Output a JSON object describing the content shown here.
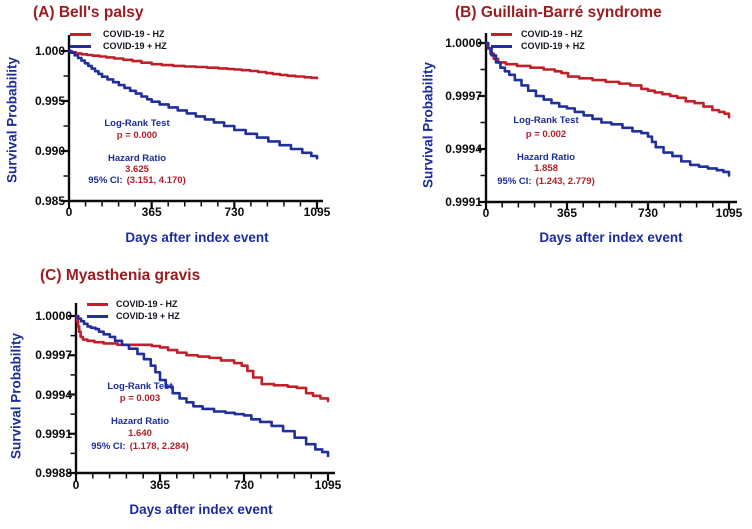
{
  "figure": {
    "background": "#ffffff",
    "colors": {
      "curve_red": "#C1202A",
      "curve_blue": "#212F9C",
      "title_red": "#9B1B1F",
      "navy": "#1B2C9B",
      "tick_text": "#0a0a0a",
      "stat_red": "#B01E27",
      "legend_text": "#15151f",
      "axis": "#0a0a0a"
    }
  },
  "chart_data": [
    {
      "id": "A",
      "type": "line",
      "subtype": "kaplan-meier-step",
      "title": "(A) Bell's palsy",
      "xlabel": "Days after index event",
      "ylabel": "Survival Probability",
      "xlim": [
        0,
        1095
      ],
      "ylim": [
        0.985,
        1.0
      ],
      "grid": false,
      "legend_position": "top-left-inside",
      "xticks": [
        {
          "label": "0",
          "day": 0
        },
        {
          "label": "365",
          "day": 365
        },
        {
          "label": "730",
          "day": 730
        },
        {
          "label": "1095",
          "day": 1095
        }
      ],
      "yticks": [
        {
          "label": "1.000",
          "value": 1.0
        },
        {
          "label": "0.995",
          "value": 0.995
        },
        {
          "label": "0.990",
          "value": 0.99
        },
        {
          "label": "0.985",
          "value": 0.985
        }
      ],
      "legend": [
        {
          "label": "COVID-19 - HZ",
          "color": "#C1202A"
        },
        {
          "label": "COVID-19 + HZ",
          "color": "#212F9C"
        }
      ],
      "stats": {
        "test_label": "Log-Rank Test",
        "p_text": "p = 0.000",
        "hr_label": "Hazard Ratio",
        "hr_value": "3.625",
        "ci_label": "95% CI:",
        "ci_value": "(3.151, 4.170)"
      },
      "series": [
        {
          "name": "COVID-19 - HZ",
          "color": "#C1202A",
          "points": [
            [
              0,
              1.0
            ],
            [
              12,
              0.99988
            ],
            [
              30,
              0.99976
            ],
            [
              55,
              0.99967
            ],
            [
              80,
              0.9996
            ],
            [
              105,
              0.99953
            ],
            [
              135,
              0.99945
            ],
            [
              165,
              0.99936
            ],
            [
              200,
              0.99925
            ],
            [
              240,
              0.99912
            ],
            [
              280,
              0.99899
            ],
            [
              320,
              0.99883
            ],
            [
              365,
              0.99868
            ],
            [
              410,
              0.99859
            ],
            [
              460,
              0.99851
            ],
            [
              510,
              0.99845
            ],
            [
              560,
              0.9984
            ],
            [
              610,
              0.99833
            ],
            [
              660,
              0.99826
            ],
            [
              700,
              0.9982
            ],
            [
              730,
              0.99815
            ],
            [
              762,
              0.99808
            ],
            [
              800,
              0.998
            ],
            [
              835,
              0.9979
            ],
            [
              870,
              0.99779
            ],
            [
              900,
              0.99769
            ],
            [
              932,
              0.9976
            ],
            [
              965,
              0.99752
            ],
            [
              1000,
              0.99745
            ],
            [
              1040,
              0.99737
            ],
            [
              1070,
              0.99732
            ],
            [
              1095,
              0.99729
            ]
          ]
        },
        {
          "name": "COVID-19 + HZ",
          "color": "#212F9C",
          "points": [
            [
              0,
              1.0
            ],
            [
              10,
              0.99983
            ],
            [
              25,
              0.99957
            ],
            [
              40,
              0.9993
            ],
            [
              55,
              0.99904
            ],
            [
              70,
              0.99877
            ],
            [
              85,
              0.99851
            ],
            [
              100,
              0.99824
            ],
            [
              115,
              0.99798
            ],
            [
              130,
              0.99771
            ],
            [
              146,
              0.99743
            ],
            [
              170,
              0.99716
            ],
            [
              195,
              0.99688
            ],
            [
              220,
              0.99659
            ],
            [
              245,
              0.99631
            ],
            [
              270,
              0.99602
            ],
            [
              295,
              0.99574
            ],
            [
              320,
              0.99545
            ],
            [
              345,
              0.99517
            ],
            [
              365,
              0.99493
            ],
            [
              400,
              0.99466
            ],
            [
              440,
              0.99436
            ],
            [
              480,
              0.99406
            ],
            [
              520,
              0.99376
            ],
            [
              560,
              0.99346
            ],
            [
              600,
              0.99316
            ],
            [
              640,
              0.99286
            ],
            [
              685,
              0.9925
            ],
            [
              730,
              0.9921
            ],
            [
              780,
              0.99172
            ],
            [
              830,
              0.99134
            ],
            [
              880,
              0.99096
            ],
            [
              930,
              0.99058
            ],
            [
              980,
              0.9902
            ],
            [
              1030,
              0.98982
            ],
            [
              1070,
              0.9895
            ],
            [
              1095,
              0.98928
            ]
          ]
        }
      ]
    },
    {
      "id": "B",
      "type": "line",
      "subtype": "kaplan-meier-step",
      "title": "(B) Guillain-Barré syndrome",
      "xlabel": "Days after index event",
      "ylabel": "Survival Probability",
      "xlim": [
        0,
        1095
      ],
      "ylim": [
        0.9991,
        1.0
      ],
      "grid": false,
      "legend_position": "top-left-inside",
      "xticks": [
        {
          "label": "0",
          "day": 0
        },
        {
          "label": "365",
          "day": 365
        },
        {
          "label": "730",
          "day": 730
        },
        {
          "label": "1095",
          "day": 1095
        }
      ],
      "yticks": [
        {
          "label": "1.0000",
          "value": 1.0
        },
        {
          "label": "0.9997",
          "value": 0.9997
        },
        {
          "label": "0.9994",
          "value": 0.9994
        },
        {
          "label": "0.9991",
          "value": 0.9991
        }
      ],
      "legend": [
        {
          "label": "COVID-19 - HZ",
          "color": "#C1202A"
        },
        {
          "label": "COVID-19 + HZ",
          "color": "#212F9C"
        }
      ],
      "stats": {
        "test_label": "Log-Rank Test",
        "p_text": "p = 0.002",
        "hr_label": "Hazard Ratio",
        "hr_value": "1.858",
        "ci_label": "95% CI:",
        "ci_value": "(1.243, 2.779)"
      },
      "series": [
        {
          "name": "COVID-19 - HZ",
          "color": "#C1202A",
          "points": [
            [
              0,
              1.0
            ],
            [
              8,
              0.99997
            ],
            [
              20,
              0.99994
            ],
            [
              35,
              0.99991
            ],
            [
              55,
              0.99989
            ],
            [
              90,
              0.99988
            ],
            [
              140,
              0.99987
            ],
            [
              200,
              0.99986
            ],
            [
              260,
              0.99985
            ],
            [
              310,
              0.99984
            ],
            [
              340,
              0.99983
            ],
            [
              370,
              0.99981
            ],
            [
              420,
              0.9998
            ],
            [
              480,
              0.99979
            ],
            [
              540,
              0.99978
            ],
            [
              600,
              0.99977
            ],
            [
              650,
              0.99976
            ],
            [
              700,
              0.99974
            ],
            [
              730,
              0.99973
            ],
            [
              760,
              0.99972
            ],
            [
              795,
              0.99971
            ],
            [
              830,
              0.9997
            ],
            [
              862,
              0.99969
            ],
            [
              900,
              0.99967
            ],
            [
              940,
              0.99966
            ],
            [
              980,
              0.99964
            ],
            [
              1020,
              0.99962
            ],
            [
              1050,
              0.99961
            ],
            [
              1075,
              0.9996
            ],
            [
              1095,
              0.99958
            ]
          ]
        },
        {
          "name": "COVID-19 + HZ",
          "color": "#212F9C",
          "points": [
            [
              0,
              1.0
            ],
            [
              10,
              0.99997
            ],
            [
              25,
              0.99993
            ],
            [
              45,
              0.99989
            ],
            [
              65,
              0.99986
            ],
            [
              85,
              0.99984
            ],
            [
              105,
              0.99982
            ],
            [
              130,
              0.99979
            ],
            [
              160,
              0.99976
            ],
            [
              190,
              0.99973
            ],
            [
              225,
              0.9997
            ],
            [
              260,
              0.99968
            ],
            [
              295,
              0.99966
            ],
            [
              330,
              0.99964
            ],
            [
              365,
              0.99963
            ],
            [
              400,
              0.99961
            ],
            [
              440,
              0.99959
            ],
            [
              480,
              0.99957
            ],
            [
              520,
              0.99955
            ],
            [
              565,
              0.99954
            ],
            [
              615,
              0.99952
            ],
            [
              660,
              0.9995
            ],
            [
              700,
              0.99949
            ],
            [
              730,
              0.99947
            ],
            [
              748,
              0.99944
            ],
            [
              765,
              0.99941
            ],
            [
              800,
              0.99938
            ],
            [
              840,
              0.99936
            ],
            [
              880,
              0.99933
            ],
            [
              920,
              0.99931
            ],
            [
              960,
              0.9993
            ],
            [
              1000,
              0.99929
            ],
            [
              1040,
              0.99928
            ],
            [
              1070,
              0.99927
            ],
            [
              1095,
              0.99925
            ]
          ]
        }
      ]
    },
    {
      "id": "C",
      "type": "line",
      "subtype": "kaplan-meier-step",
      "title": "(C) Myasthenia gravis",
      "xlabel": "Days after index event",
      "ylabel": "Survival Probability",
      "xlim": [
        0,
        1095
      ],
      "ylim": [
        0.9988,
        1.0
      ],
      "grid": false,
      "legend_position": "top-left-inside",
      "xticks": [
        {
          "label": "0",
          "day": 0
        },
        {
          "label": "365",
          "day": 365
        },
        {
          "label": "730",
          "day": 730
        },
        {
          "label": "1095",
          "day": 1095
        }
      ],
      "yticks": [
        {
          "label": "1.0000",
          "value": 1.0
        },
        {
          "label": "0.9997",
          "value": 0.9997
        },
        {
          "label": "0.9994",
          "value": 0.9994
        },
        {
          "label": "0.9991",
          "value": 0.9991
        },
        {
          "label": "0.9988",
          "value": 0.9988
        }
      ],
      "legend": [
        {
          "label": "COVID-19 - HZ",
          "color": "#C1202A"
        },
        {
          "label": "COVID-19 + HZ",
          "color": "#212F9C"
        }
      ],
      "stats": {
        "test_label": "Log-Rank Test",
        "p_text": "p = 0.003",
        "hr_label": "Hazard Ratio",
        "hr_value": "1.640",
        "ci_label": "95% CI:",
        "ci_value": "(1.178, 2.284)"
      },
      "series": [
        {
          "name": "COVID-19 - HZ",
          "color": "#C1202A",
          "points": [
            [
              0,
              1.0
            ],
            [
              4,
              0.99996
            ],
            [
              9,
              0.99992
            ],
            [
              14,
              0.99988
            ],
            [
              20,
              0.99984
            ],
            [
              30,
              0.99982
            ],
            [
              50,
              0.99981
            ],
            [
              80,
              0.9998
            ],
            [
              120,
              0.99979
            ],
            [
              180,
              0.99978
            ],
            [
              250,
              0.99978
            ],
            [
              330,
              0.99977
            ],
            [
              365,
              0.99976
            ],
            [
              400,
              0.99974
            ],
            [
              440,
              0.99972
            ],
            [
              480,
              0.9997
            ],
            [
              530,
              0.99969
            ],
            [
              580,
              0.99968
            ],
            [
              630,
              0.99966
            ],
            [
              687,
              0.99964
            ],
            [
              720,
              0.99962
            ],
            [
              745,
              0.99958
            ],
            [
              770,
              0.99953
            ],
            [
              807,
              0.99948
            ],
            [
              860,
              0.99947
            ],
            [
              920,
              0.99946
            ],
            [
              960,
              0.99945
            ],
            [
              1000,
              0.99941
            ],
            [
              1030,
              0.99939
            ],
            [
              1062,
              0.99937
            ],
            [
              1095,
              0.99935
            ]
          ]
        },
        {
          "name": "COVID-19 + HZ",
          "color": "#212F9C",
          "points": [
            [
              0,
              1.0
            ],
            [
              10,
              0.99998
            ],
            [
              22,
              0.99996
            ],
            [
              35,
              0.99994
            ],
            [
              50,
              0.99992
            ],
            [
              65,
              0.99991
            ],
            [
              85,
              0.9999
            ],
            [
              100,
              0.99988
            ],
            [
              120,
              0.99986
            ],
            [
              147,
              0.99984
            ],
            [
              170,
              0.99981
            ],
            [
              200,
              0.99978
            ],
            [
              230,
              0.99975
            ],
            [
              267,
              0.99971
            ],
            [
              295,
              0.99967
            ],
            [
              325,
              0.99962
            ],
            [
              345,
              0.99957
            ],
            [
              365,
              0.99951
            ],
            [
              390,
              0.99946
            ],
            [
              420,
              0.99941
            ],
            [
              450,
              0.99937
            ],
            [
              480,
              0.99934
            ],
            [
              510,
              0.99931
            ],
            [
              550,
              0.99929
            ],
            [
              600,
              0.99927
            ],
            [
              650,
              0.99926
            ],
            [
              690,
              0.99925
            ],
            [
              730,
              0.99924
            ],
            [
              762,
              0.99921
            ],
            [
              800,
              0.99919
            ],
            [
              850,
              0.99916
            ],
            [
              900,
              0.99912
            ],
            [
              950,
              0.99907
            ],
            [
              1000,
              0.99902
            ],
            [
              1040,
              0.99898
            ],
            [
              1070,
              0.99896
            ],
            [
              1095,
              0.99893
            ]
          ]
        }
      ]
    }
  ]
}
